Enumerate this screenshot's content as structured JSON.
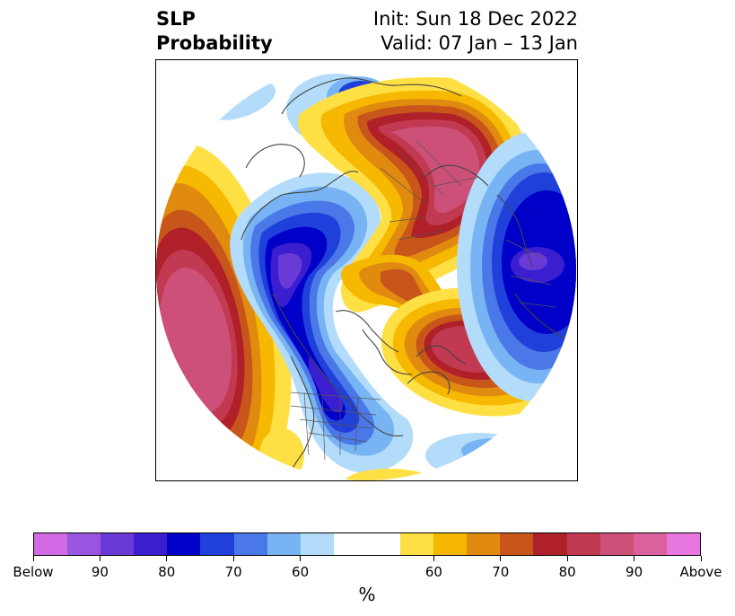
{
  "header": {
    "title_line1": "SLP",
    "title_line2": "Probability",
    "init": "Init: Sun 18 Dec 2022",
    "valid": "Valid: 07 Jan – 13 Jan"
  },
  "colorbar": {
    "unit": "%",
    "tick_labels": [
      "Below",
      "90",
      "80",
      "70",
      "60",
      "60",
      "70",
      "80",
      "90",
      "Above"
    ],
    "colors": [
      "#d26ae6",
      "#9a55e0",
      "#6a3ad6",
      "#3a1ed0",
      "#0000c8",
      "#2040dc",
      "#4a78e8",
      "#78b4f4",
      "#b2dcfa",
      "#ffffff",
      "#ffffff",
      "#ffe044",
      "#f6b800",
      "#e08a10",
      "#c8561a",
      "#b02028",
      "#c23a52",
      "#cc5078",
      "#dc609e",
      "#e878e0"
    ]
  },
  "map": {
    "projection": "north-polar-stereographic",
    "color_below": "#2040dc",
    "color_above": "#b02028",
    "features": [
      "coastlines",
      "country-borders",
      "us-state-borders"
    ]
  }
}
